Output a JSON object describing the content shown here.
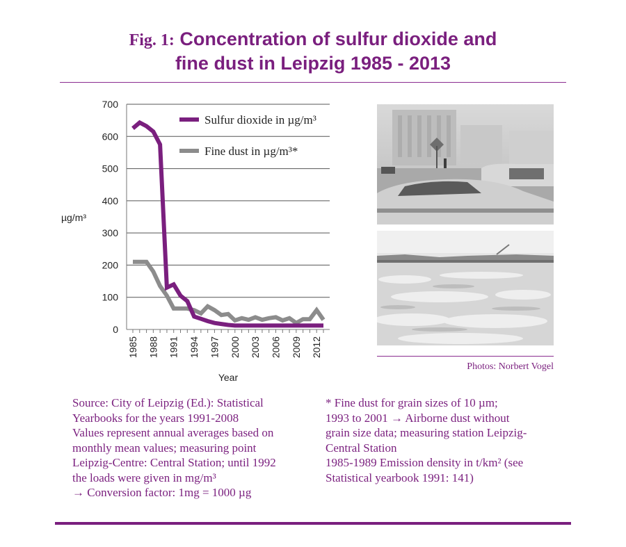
{
  "title": {
    "fig_label": "Fig. 1:",
    "line1": "Concentration of sulfur dioxide and",
    "line2": "fine dust in Leipzig 1985 - 2013"
  },
  "chart_data": {
    "type": "line",
    "title": "",
    "xlabel": "Year",
    "ylabel": "µg/m³",
    "ylim": [
      0,
      700
    ],
    "yticks": [
      0,
      100,
      200,
      300,
      400,
      500,
      600,
      700
    ],
    "xticks": [
      "1985",
      "1988",
      "1991",
      "1994",
      "1997",
      "2000",
      "2003",
      "2006",
      "2009",
      "2012"
    ],
    "x": [
      1985,
      1986,
      1987,
      1988,
      1989,
      1990,
      1991,
      1992,
      1993,
      1994,
      1995,
      1996,
      1997,
      1998,
      1999,
      2000,
      2001,
      2002,
      2003,
      2004,
      2005,
      2006,
      2007,
      2008,
      2009,
      2010,
      2011,
      2012,
      2013
    ],
    "grid": "horizontal",
    "legend_position": "top-right",
    "series": [
      {
        "name": "Sulfur dioxide in µg/m³",
        "color": "#7a1f7e",
        "values": [
          625,
          643,
          632,
          615,
          575,
          130,
          140,
          105,
          88,
          40,
          33,
          26,
          20,
          17,
          14,
          12,
          12,
          12,
          12,
          12,
          12,
          12,
          12,
          12,
          12,
          12,
          12,
          12,
          12
        ]
      },
      {
        "name": "Fine dust in µg/m³*",
        "color": "#8c8c8c",
        "values": [
          210,
          210,
          210,
          180,
          135,
          105,
          65,
          65,
          65,
          60,
          50,
          72,
          60,
          45,
          48,
          28,
          35,
          30,
          38,
          30,
          35,
          38,
          28,
          35,
          20,
          32,
          32,
          60,
          30
        ]
      }
    ]
  },
  "photos": {
    "top": {
      "icon": "street-smog-photo"
    },
    "bottom": {
      "icon": "river-pollution-photo"
    },
    "credit": "Photos: Norbert Vogel"
  },
  "source_note": [
    "Source: City of Leipzig (Ed.): Statistical",
    "Yearbooks for the years 1991-2008",
    "Values represent annual averages based on",
    "monthly mean values; measuring point",
    "Leipzig-Centre: Central Station; until 1992",
    "the loads were given in mg/m³",
    " → Conversion factor: 1mg = 1000 µg"
  ],
  "footnote": [
    "* Fine dust for grain sizes of  10 µm;",
    "1993 to 2001 → Airborne dust without",
    "grain size data; measuring station Leipzig-",
    "Central Station",
    "1985-1989 Emission density in t/km² (see",
    "Statistical yearbook 1991: 141)"
  ]
}
